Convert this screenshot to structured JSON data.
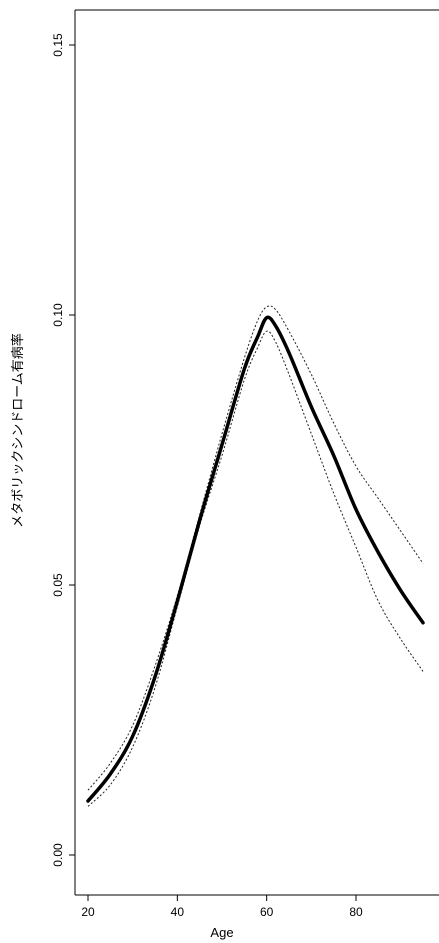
{
  "chart_data": {
    "type": "line",
    "title": "",
    "xlabel": "Age",
    "ylabel": "メタボリックシンドローム有病率",
    "xlim": [
      20,
      95
    ],
    "ylim": [
      0.0,
      0.15
    ],
    "x_ticks": [
      20,
      40,
      60,
      80
    ],
    "y_ticks": [
      0.0,
      0.05,
      0.1,
      0.15
    ],
    "y_tick_labels": [
      "0.00",
      "0.05",
      "0.10",
      "0.15"
    ],
    "x_tick_labels": [
      "20",
      "40",
      "60",
      "80"
    ],
    "series": [
      {
        "style": "solid-thick",
        "x": [
          20,
          25,
          30,
          35,
          40,
          45,
          50,
          55,
          58,
          60,
          62,
          65,
          70,
          75,
          80,
          85,
          90,
          95
        ],
        "y": [
          0.01,
          0.015,
          0.022,
          0.033,
          0.047,
          0.062,
          0.076,
          0.09,
          0.096,
          0.0995,
          0.098,
          0.093,
          0.083,
          0.074,
          0.064,
          0.056,
          0.049,
          0.043
        ]
      },
      {
        "style": "dotted-upper",
        "x": [
          20,
          25,
          30,
          35,
          40,
          45,
          50,
          55,
          58,
          60,
          62,
          65,
          70,
          75,
          80,
          85,
          90,
          95
        ],
        "y": [
          0.012,
          0.017,
          0.024,
          0.035,
          0.048,
          0.063,
          0.078,
          0.092,
          0.099,
          0.1015,
          0.101,
          0.097,
          0.089,
          0.08,
          0.072,
          0.066,
          0.06,
          0.054
        ]
      },
      {
        "style": "dotted-lower",
        "x": [
          20,
          25,
          30,
          35,
          40,
          45,
          50,
          55,
          58,
          60,
          62,
          65,
          70,
          75,
          80,
          85,
          90,
          95
        ],
        "y": [
          0.009,
          0.013,
          0.02,
          0.031,
          0.046,
          0.061,
          0.074,
          0.088,
          0.094,
          0.097,
          0.095,
          0.089,
          0.078,
          0.067,
          0.057,
          0.047,
          0.04,
          0.034
        ]
      }
    ]
  }
}
